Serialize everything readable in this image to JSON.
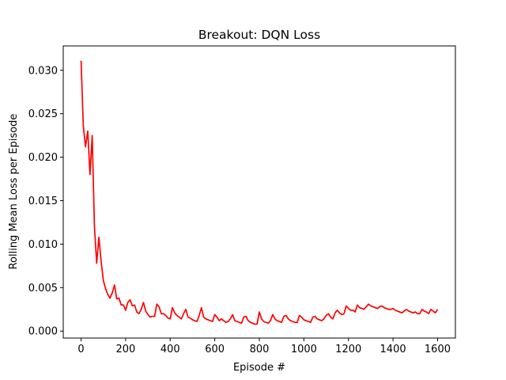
{
  "chart_data": {
    "type": "line",
    "title": "Breakout: DQN Loss",
    "xlabel": "Episode #",
    "ylabel": "Rolling Mean Loss per Episode",
    "xlim": [
      -80,
      1680
    ],
    "ylim": [
      -0.0008,
      0.0328
    ],
    "xticks": [
      0,
      200,
      400,
      600,
      800,
      1000,
      1200,
      1400,
      1600
    ],
    "xtick_labels": [
      "0",
      "200",
      "400",
      "600",
      "800",
      "1000",
      "1200",
      "1400",
      "1600"
    ],
    "yticks": [
      0.0,
      0.005,
      0.01,
      0.015,
      0.02,
      0.025,
      0.03
    ],
    "ytick_labels": [
      "0.000",
      "0.005",
      "0.010",
      "0.015",
      "0.020",
      "0.025",
      "0.030"
    ],
    "grid": false,
    "series": [
      {
        "color": "#ff0000",
        "x": [
          0,
          10,
          20,
          30,
          40,
          50,
          60,
          70,
          80,
          90,
          100,
          110,
          120,
          130,
          140,
          150,
          160,
          170,
          180,
          190,
          200,
          210,
          220,
          230,
          240,
          250,
          260,
          270,
          280,
          290,
          300,
          310,
          320,
          330,
          340,
          350,
          360,
          370,
          380,
          390,
          400,
          410,
          420,
          430,
          440,
          450,
          460,
          470,
          480,
          490,
          500,
          510,
          520,
          530,
          540,
          550,
          560,
          570,
          580,
          590,
          600,
          610,
          620,
          630,
          640,
          650,
          660,
          670,
          680,
          690,
          700,
          710,
          720,
          730,
          740,
          750,
          760,
          770,
          780,
          790,
          800,
          810,
          820,
          830,
          840,
          850,
          860,
          870,
          880,
          890,
          900,
          910,
          920,
          930,
          940,
          950,
          960,
          970,
          980,
          990,
          1000,
          1010,
          1020,
          1030,
          1040,
          1050,
          1060,
          1070,
          1080,
          1090,
          1100,
          1110,
          1120,
          1130,
          1140,
          1150,
          1160,
          1170,
          1180,
          1190,
          1200,
          1210,
          1220,
          1230,
          1240,
          1250,
          1260,
          1270,
          1280,
          1290,
          1300,
          1310,
          1320,
          1330,
          1340,
          1350,
          1360,
          1370,
          1380,
          1390,
          1400,
          1410,
          1420,
          1430,
          1440,
          1450,
          1460,
          1470,
          1480,
          1490,
          1500,
          1510,
          1520,
          1530,
          1540,
          1550,
          1560,
          1570,
          1580,
          1590,
          1600
        ],
        "y": [
          0.0311,
          0.0236,
          0.0212,
          0.023,
          0.018,
          0.0225,
          0.012,
          0.0078,
          0.0108,
          0.008,
          0.0058,
          0.0049,
          0.0042,
          0.0038,
          0.0044,
          0.0053,
          0.0037,
          0.0038,
          0.003,
          0.003,
          0.0024,
          0.0033,
          0.0036,
          0.0029,
          0.003,
          0.0022,
          0.002,
          0.0025,
          0.0033,
          0.0023,
          0.0019,
          0.0016,
          0.0017,
          0.0017,
          0.0031,
          0.0028,
          0.002,
          0.002,
          0.0018,
          0.0015,
          0.0014,
          0.0027,
          0.0021,
          0.0018,
          0.0016,
          0.0014,
          0.002,
          0.0025,
          0.0016,
          0.0015,
          0.0013,
          0.0012,
          0.0011,
          0.0018,
          0.0027,
          0.0016,
          0.0014,
          0.0013,
          0.0012,
          0.0011,
          0.0019,
          0.0016,
          0.0012,
          0.0014,
          0.0012,
          0.001,
          0.0011,
          0.0014,
          0.0019,
          0.0012,
          0.0011,
          0.001,
          0.0009,
          0.0016,
          0.0017,
          0.0012,
          0.001,
          0.0009,
          0.0008,
          0.0008,
          0.0022,
          0.0014,
          0.0011,
          0.001,
          0.0009,
          0.0012,
          0.0019,
          0.0014,
          0.0012,
          0.0011,
          0.001,
          0.0017,
          0.0018,
          0.0014,
          0.0012,
          0.0011,
          0.001,
          0.001,
          0.0018,
          0.0016,
          0.0013,
          0.0012,
          0.0011,
          0.001,
          0.0016,
          0.0017,
          0.0014,
          0.0013,
          0.0012,
          0.0014,
          0.0018,
          0.002,
          0.0016,
          0.0014,
          0.0021,
          0.0024,
          0.0021,
          0.0019,
          0.002,
          0.0029,
          0.0026,
          0.0024,
          0.0024,
          0.0022,
          0.003,
          0.0027,
          0.0026,
          0.0025,
          0.0028,
          0.0031,
          0.0029,
          0.0028,
          0.0027,
          0.0026,
          0.0028,
          0.0029,
          0.0027,
          0.0026,
          0.0025,
          0.0025,
          0.0026,
          0.0024,
          0.0023,
          0.0022,
          0.0021,
          0.0023,
          0.0025,
          0.0023,
          0.0022,
          0.0021,
          0.0022,
          0.002,
          0.002,
          0.0025,
          0.0023,
          0.0022,
          0.002,
          0.0025,
          0.0023,
          0.0021,
          0.0025
        ]
      }
    ]
  }
}
